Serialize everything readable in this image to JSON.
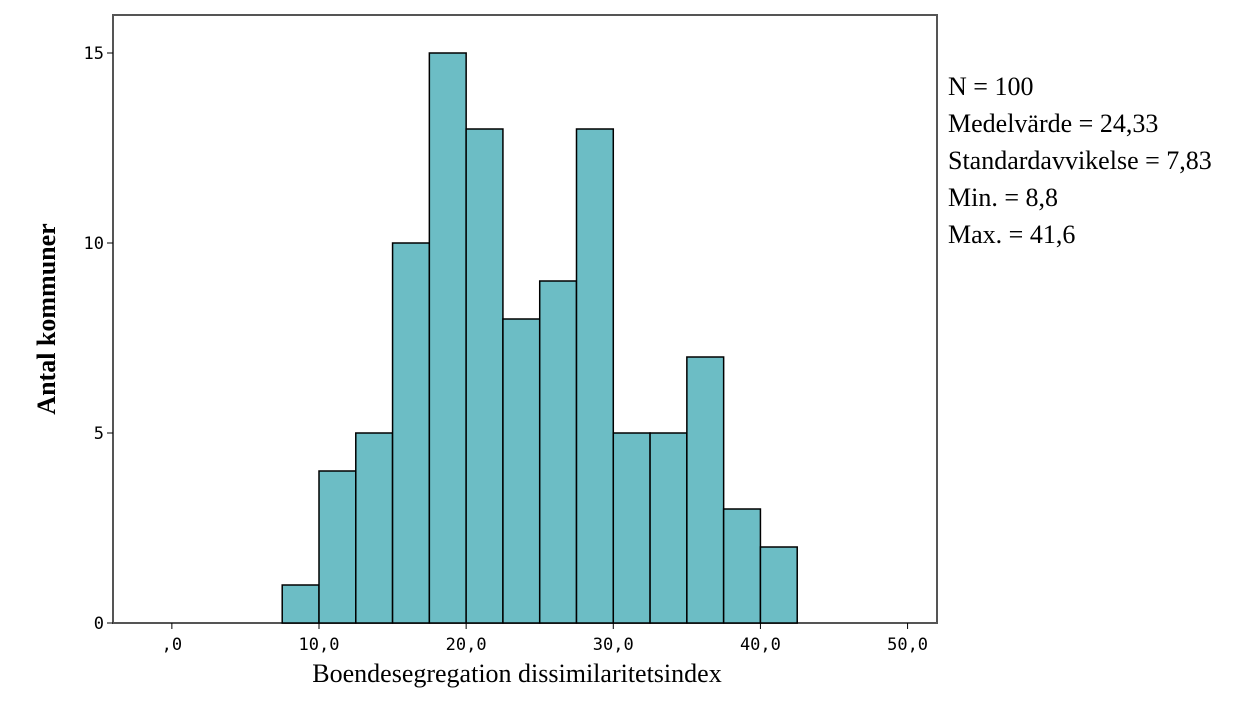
{
  "chart_data": {
    "type": "bar",
    "title": "",
    "xlabel": "Boendesegregation dissimilaritetsindex",
    "ylabel": "Antal kommuner",
    "xlim": [
      -4,
      52
    ],
    "ylim": [
      0,
      16
    ],
    "x_ticks": [
      0,
      10,
      20,
      30,
      40,
      50
    ],
    "x_tick_labels": [
      ",0",
      "10,0",
      "20,0",
      "30,0",
      "40,0",
      "50,0"
    ],
    "y_ticks": [
      0,
      5,
      10,
      15
    ],
    "y_tick_labels": [
      "0",
      "5",
      "10",
      "15"
    ],
    "bin_width": 2.5,
    "bins": [
      {
        "start": 7.5,
        "end": 10.0,
        "count": 1
      },
      {
        "start": 10.0,
        "end": 12.5,
        "count": 4
      },
      {
        "start": 12.5,
        "end": 15.0,
        "count": 5
      },
      {
        "start": 15.0,
        "end": 17.5,
        "count": 10
      },
      {
        "start": 17.5,
        "end": 20.0,
        "count": 15
      },
      {
        "start": 20.0,
        "end": 22.5,
        "count": 13
      },
      {
        "start": 22.5,
        "end": 25.0,
        "count": 8
      },
      {
        "start": 25.0,
        "end": 27.5,
        "count": 9
      },
      {
        "start": 27.5,
        "end": 30.0,
        "count": 13
      },
      {
        "start": 30.0,
        "end": 32.5,
        "count": 5
      },
      {
        "start": 32.5,
        "end": 35.0,
        "count": 5
      },
      {
        "start": 35.0,
        "end": 37.5,
        "count": 7
      },
      {
        "start": 37.5,
        "end": 40.0,
        "count": 3
      },
      {
        "start": 40.0,
        "end": 42.5,
        "count": 2
      }
    ],
    "grid": false,
    "bar_color": "#6cbdc5",
    "edge_color": "#000000",
    "stats": {
      "n": "N = 100",
      "mean": "Medelvärde = 24,33",
      "std": "Standardavvikelse = 7,83",
      "min": "Min. = 8,8",
      "max": "Max. = 41,6"
    }
  }
}
